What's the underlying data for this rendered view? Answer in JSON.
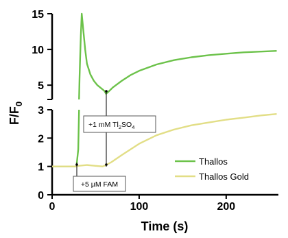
{
  "chart_data": {
    "type": "line",
    "xlabel": "Time (s)",
    "ylabel_main": "F/F",
    "ylabel_sub": "0",
    "xlim": [
      0,
      260
    ],
    "x_ticks": [
      "0",
      "100",
      "200"
    ],
    "x_tick_values": [
      0,
      100,
      200
    ],
    "ylim_lower": [
      0,
      3
    ],
    "ylim_upper": [
      3,
      15
    ],
    "y_ticks_lower": [
      "0",
      "1",
      "2",
      "3"
    ],
    "y_ticks_lower_values": [
      0,
      1,
      2,
      3
    ],
    "y_ticks_upper": [
      "5",
      "10",
      "15"
    ],
    "y_ticks_upper_values": [
      5,
      10,
      15
    ],
    "axis_break_y": 3,
    "legend_position": "lower-right",
    "series": [
      {
        "name": "Thallos",
        "color": "#6cc24a",
        "points": [
          [
            0,
            1.0
          ],
          [
            10,
            1.0
          ],
          [
            20,
            1.0
          ],
          [
            26,
            1.0
          ],
          [
            28,
            1.0
          ],
          [
            30,
            1.6
          ],
          [
            31,
            3.0
          ],
          [
            31.5,
            6.0
          ],
          [
            32,
            8.0
          ],
          [
            33,
            12.0
          ],
          [
            34,
            15.0
          ],
          [
            36,
            12.5
          ],
          [
            38,
            10.0
          ],
          [
            40,
            8.0
          ],
          [
            44,
            6.5
          ],
          [
            48,
            5.6
          ],
          [
            52,
            5.0
          ],
          [
            56,
            4.6
          ],
          [
            60,
            4.2
          ],
          [
            62,
            3.8
          ],
          [
            64,
            4.0
          ],
          [
            70,
            4.7
          ],
          [
            80,
            5.6
          ],
          [
            90,
            6.4
          ],
          [
            100,
            7.0
          ],
          [
            120,
            7.9
          ],
          [
            140,
            8.5
          ],
          [
            160,
            8.9
          ],
          [
            180,
            9.2
          ],
          [
            200,
            9.4
          ],
          [
            220,
            9.6
          ],
          [
            240,
            9.7
          ],
          [
            258,
            9.8
          ]
        ]
      },
      {
        "name": "Thallos Gold",
        "color": "#e2de86",
        "points": [
          [
            0,
            1.0
          ],
          [
            28,
            1.0
          ],
          [
            30,
            1.02
          ],
          [
            40,
            1.05
          ],
          [
            50,
            1.02
          ],
          [
            58,
            1.0
          ],
          [
            62,
            1.05
          ],
          [
            68,
            1.15
          ],
          [
            80,
            1.4
          ],
          [
            90,
            1.6
          ],
          [
            100,
            1.8
          ],
          [
            120,
            2.1
          ],
          [
            140,
            2.3
          ],
          [
            160,
            2.45
          ],
          [
            180,
            2.55
          ],
          [
            200,
            2.65
          ],
          [
            220,
            2.72
          ],
          [
            240,
            2.8
          ],
          [
            258,
            2.85
          ]
        ]
      }
    ],
    "annotations": [
      {
        "label_main": "+5 µM FAM",
        "x": 30
      },
      {
        "label_pre": "+1 mM Tl",
        "label_sub1": "2",
        "label_mid": "SO",
        "label_sub2": "4",
        "x": 60
      }
    ]
  }
}
